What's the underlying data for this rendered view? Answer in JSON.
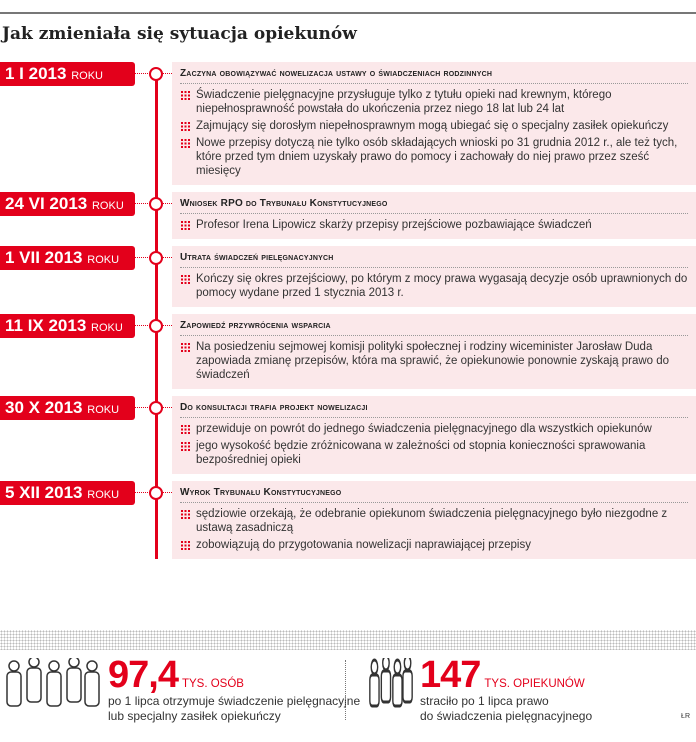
{
  "title": "Jak zmieniała się sytuacja opiekunów",
  "events": [
    {
      "date": "1 I 2013",
      "suffix": "ROKU",
      "heading": "Zaczyna obowiązywać nowelizacja ustawy o świadczeniach rodzinnych",
      "items": [
        "Świadczenie pielęgnacyjne przysługuje tylko z tytułu opieki nad krewnym, którego niepełnosprawność powstała do ukończenia przez niego 18 lat lub 24 lat",
        "Zajmujący się dorosłym niepełnosprawnym mogą ubiegać się o specjalny zasiłek opiekuńczy",
        "Nowe przepisy dotyczą nie tylko osób składających wnioski po 31 grudnia 2012 r., ale też tych, które przed tym dniem uzyskały prawo do pomocy i zachowały do niej prawo przez sześć miesięcy"
      ]
    },
    {
      "date": "24 VI 2013",
      "suffix": "ROKU",
      "heading": "Wniosek RPO do Trybunału Konstytucyjnego",
      "items": [
        "Profesor Irena Lipowicz skarży przepisy przejściowe pozbawiające świadczeń"
      ]
    },
    {
      "date": "1 VII 2013",
      "suffix": "ROKU",
      "heading": "Utrata świadczeń pielęgnacyjnych",
      "items": [
        "Kończy się okres przejściowy, po którym z mocy prawa wygasają decyzje osób uprawnionych do pomocy wydane przed 1 stycznia 2013 r."
      ]
    },
    {
      "date": "11 IX 2013",
      "suffix": "ROKU",
      "heading": "Zapowiedź przywrócenia wsparcia",
      "items": [
        "Na posiedzeniu sejmowej komisji polityki społecznej i rodziny wiceminister Jarosław Duda zapowiada zmianę przepisów, która ma sprawić, że opiekunowie ponownie zyskają prawo do świadczeń"
      ]
    },
    {
      "date": "30 X 2013",
      "suffix": "ROKU",
      "heading": "Do konsultacji trafia projekt nowelizacji",
      "items": [
        "przewiduje on powrót do jednego świadczenia pielęgnacyjnego dla wszystkich opiekunów",
        "jego wysokość będzie zróżnicowana w zależności od stopnia konieczności sprawowania bezpośredniej opieki"
      ]
    },
    {
      "date": "5 XII 2013",
      "suffix": "ROKU",
      "heading": "Wyrok Trybunału Konstytucyjnego",
      "items": [
        "sędziowie orzekają, że odebranie opiekunom świadczenia pielęgnacyjnego było niezgodne z ustawą zasadniczą",
        "zobowiązują do przygotowania nowelizacji naprawiającej przepisy"
      ]
    }
  ],
  "stats": [
    {
      "icon": "people-icon",
      "value": "97,4",
      "unit": "TYS. OSÓB",
      "line1": "po 1 lipca otrzymuje świadczenie pielęgnacyjne",
      "line2": "lub specjalny zasiłek opiekuńczy"
    },
    {
      "icon": "people-icon",
      "value": "147",
      "unit": "TYS. OPIEKUNÓW",
      "line1": "straciło po 1 lipca prawo",
      "line2": "do świadczenia pielęgnacyjnego"
    }
  ],
  "credit": "ŁR",
  "colors": {
    "accent": "#e3001b",
    "box": "#fbe8ea"
  }
}
